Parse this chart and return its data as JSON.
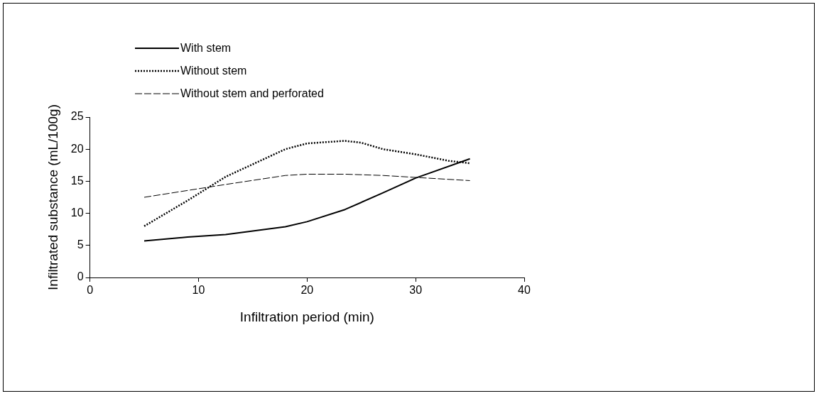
{
  "chart_data": {
    "type": "line",
    "xlabel": "Infiltration period (min)",
    "ylabel": "Infiltrated substance (mL/100g)",
    "xlim": [
      0,
      40
    ],
    "xticks": [
      0,
      10,
      20,
      30,
      40
    ],
    "ylim": [
      0,
      25
    ],
    "yticks": [
      0,
      5,
      10,
      15,
      20,
      25
    ],
    "grid": false,
    "legend": "top left",
    "marker": "none",
    "series": [
      {
        "name": "With stem",
        "color": "#000000",
        "line_style": "solid",
        "x": [
          5,
          9,
          12.5,
          18,
          20,
          23.5,
          27,
          30,
          35
        ],
        "values": [
          5.7,
          6.3,
          6.7,
          7.9,
          8.7,
          10.6,
          13.2,
          15.5,
          18.5
        ]
      },
      {
        "name": "Without stem",
        "color": "#000000",
        "line_style": "dotted",
        "x": [
          5,
          9,
          12.5,
          18,
          20,
          23.5,
          25,
          27,
          30,
          33,
          35
        ],
        "values": [
          8.0,
          12,
          15.7,
          20,
          20.9,
          21.3,
          21,
          20,
          19.2,
          18.2,
          17.8
        ]
      },
      {
        "name": "Without stem and perforated",
        "color": "#000000",
        "line_style": "dashed",
        "x": [
          5,
          12.5,
          18,
          20,
          23.5,
          27,
          30,
          35
        ],
        "values": [
          12.5,
          14.5,
          15.9,
          16.1,
          16.1,
          15.9,
          15.6,
          15.1
        ]
      }
    ]
  }
}
